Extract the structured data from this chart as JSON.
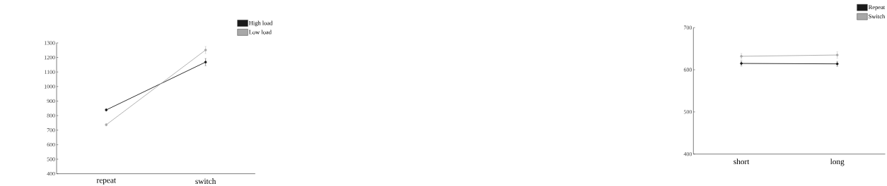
{
  "chart_data": [
    {
      "type": "line",
      "categories": [
        "repeat",
        "switch"
      ],
      "series": [
        {
          "name": "High load",
          "color": "#1a1a1a",
          "values": [
            839,
            1168
          ],
          "errors": [
            8,
            25
          ]
        },
        {
          "name": "Low load",
          "color": "#a8a8a8",
          "values": [
            737,
            1251
          ],
          "errors": [
            8,
            25
          ]
        }
      ],
      "ylim": [
        400,
        1300
      ],
      "yticks": [
        400,
        500,
        600,
        700,
        800,
        900,
        1000,
        1100,
        1200,
        1300
      ],
      "legend": "top right",
      "marker": "circle",
      "grid": false
    },
    {
      "type": "line",
      "categories": [
        "short",
        "long"
      ],
      "series": [
        {
          "name": "Repeat",
          "color": "#1a1a1a",
          "values": [
            615,
            614
          ],
          "errors": [
            6,
            6
          ]
        },
        {
          "name": "Switch",
          "color": "#a8a8a8",
          "values": [
            632,
            635
          ],
          "errors": [
            7,
            8
          ]
        }
      ],
      "ylim": [
        400,
        700
      ],
      "yticks": [
        400,
        500,
        600,
        700
      ],
      "legend": "top right",
      "marker": "circle",
      "grid": false
    }
  ]
}
